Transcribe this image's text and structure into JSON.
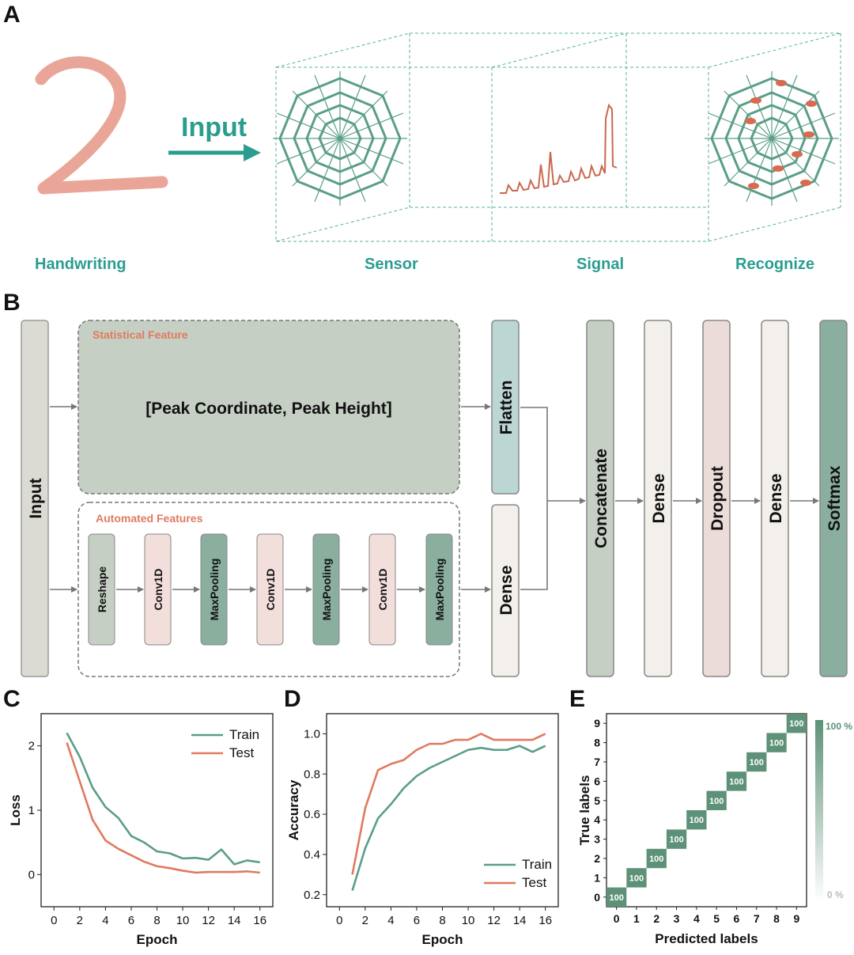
{
  "panels": {
    "a": "A",
    "b": "B",
    "c": "C",
    "d": "D",
    "e": "E"
  },
  "panel_a": {
    "handwriting_label": "Handwriting",
    "input_label": "Input",
    "sensor_label": "Sensor",
    "signal_label": "Signal",
    "recognize_label": "Recognize",
    "digit": "2"
  },
  "panel_b": {
    "input": "Input",
    "statistical_title": "Statistical Feature",
    "statistical_text": "[Peak Coordinate, Peak Height]",
    "automated_title": "Automated Features",
    "reshape": "Reshape",
    "conv1": "Conv1D",
    "maxpool1": "MaxPooling",
    "conv2": "Conv1D",
    "maxpool2": "MaxPooling",
    "conv3": "Conv1D",
    "maxpool3": "MaxPooling",
    "flatten": "Flatten",
    "dense_side": "Dense",
    "concatenate": "Concatenate",
    "dense1": "Dense",
    "dropout": "Dropout",
    "dense2": "Dense",
    "softmax": "Softmax"
  },
  "colors": {
    "teal": "#2a9d8f",
    "train": "#5a9e86",
    "test": "#e07a5f",
    "stat_fill": "#c5cfc3",
    "matrix": "#5d9178"
  },
  "chart_data": [
    {
      "type": "line",
      "panel": "C",
      "xlabel": "Epoch",
      "ylabel": "Loss",
      "xlim": [
        -1,
        17
      ],
      "ylim": [
        -0.5,
        2.5
      ],
      "xticks": [
        0,
        2,
        4,
        6,
        8,
        10,
        12,
        14,
        16
      ],
      "yticks": [
        0,
        1,
        2
      ],
      "legend": "top-right",
      "x": [
        1,
        2,
        3,
        4,
        5,
        6,
        7,
        8,
        9,
        10,
        11,
        12,
        13,
        14,
        15,
        16
      ],
      "series": [
        {
          "name": "Train",
          "color": "#5a9e86",
          "values": [
            2.2,
            1.83,
            1.35,
            1.05,
            0.88,
            0.6,
            0.5,
            0.36,
            0.33,
            0.25,
            0.26,
            0.23,
            0.39,
            0.16,
            0.22,
            0.19
          ]
        },
        {
          "name": "Test",
          "color": "#e07a5f",
          "values": [
            2.05,
            1.45,
            0.85,
            0.53,
            0.4,
            0.3,
            0.2,
            0.13,
            0.1,
            0.06,
            0.03,
            0.04,
            0.04,
            0.04,
            0.05,
            0.03
          ]
        }
      ]
    },
    {
      "type": "line",
      "panel": "D",
      "xlabel": "Epoch",
      "ylabel": "Accuracy",
      "xlim": [
        -1,
        17
      ],
      "ylim": [
        0.14,
        1.1
      ],
      "xticks": [
        0,
        2,
        4,
        6,
        8,
        10,
        12,
        14,
        16
      ],
      "yticks": [
        0.2,
        0.4,
        0.6,
        0.8,
        1.0
      ],
      "ytick_labels": [
        "0.2",
        "0.4",
        "0.6",
        "0.8",
        "1.0"
      ],
      "legend": "bottom-right",
      "x": [
        1,
        2,
        3,
        4,
        5,
        6,
        7,
        8,
        9,
        10,
        11,
        12,
        13,
        14,
        15,
        16
      ],
      "series": [
        {
          "name": "Train",
          "color": "#5a9e86",
          "values": [
            0.22,
            0.43,
            0.58,
            0.65,
            0.73,
            0.79,
            0.83,
            0.86,
            0.89,
            0.92,
            0.93,
            0.92,
            0.92,
            0.94,
            0.91,
            0.94
          ]
        },
        {
          "name": "Test",
          "color": "#e07a5f",
          "values": [
            0.3,
            0.63,
            0.82,
            0.85,
            0.87,
            0.92,
            0.95,
            0.95,
            0.97,
            0.97,
            1.0,
            0.97,
            0.97,
            0.97,
            0.97,
            1.0
          ]
        }
      ]
    },
    {
      "type": "heatmap",
      "panel": "E",
      "xlabel": "Predicted labels",
      "ylabel": "True labels",
      "x_categories": [
        "0",
        "1",
        "2",
        "3",
        "4",
        "5",
        "6",
        "7",
        "8",
        "9"
      ],
      "y_categories": [
        "0",
        "1",
        "2",
        "3",
        "4",
        "5",
        "6",
        "7",
        "8",
        "9"
      ],
      "diagonal_values": [
        100,
        100,
        100,
        100,
        100,
        100,
        100,
        100,
        100,
        100
      ],
      "colorbar_labels": [
        "100 %",
        "0 %"
      ]
    }
  ]
}
